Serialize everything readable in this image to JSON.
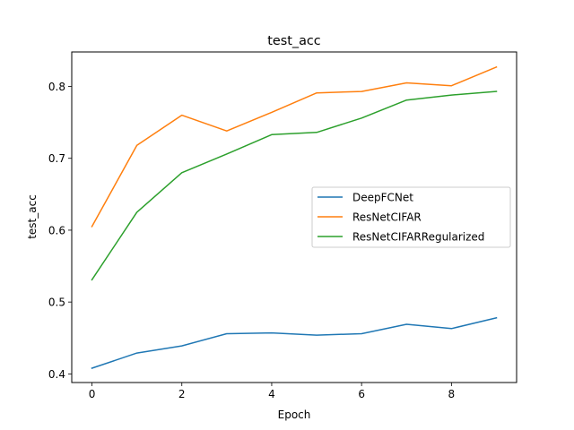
{
  "chart_data": {
    "type": "line",
    "title": "test_acc",
    "xlabel": "Epoch",
    "ylabel": "test_acc",
    "x": [
      0,
      1,
      2,
      3,
      4,
      5,
      6,
      7,
      8,
      9
    ],
    "xlim": [
      -0.45,
      9.45
    ],
    "ylim": [
      0.388,
      0.848
    ],
    "xticks": [
      0,
      2,
      4,
      6,
      8
    ],
    "yticks": [
      0.4,
      0.5,
      0.6,
      0.7,
      0.8
    ],
    "grid": false,
    "legend_position": "center-right",
    "series": [
      {
        "name": "DeepFCNet",
        "color": "#1f77b4",
        "values": [
          0.408,
          0.429,
          0.439,
          0.456,
          0.457,
          0.454,
          0.456,
          0.469,
          0.463,
          0.478
        ]
      },
      {
        "name": "ResNetCIFAR",
        "color": "#ff7f0e",
        "values": [
          0.605,
          0.718,
          0.76,
          0.738,
          0.764,
          0.791,
          0.793,
          0.805,
          0.801,
          0.827
        ]
      },
      {
        "name": "ResNetCIFARRegularized",
        "color": "#2ca02c",
        "values": [
          0.531,
          0.625,
          0.68,
          0.706,
          0.733,
          0.736,
          0.756,
          0.781,
          0.788,
          0.793
        ]
      }
    ]
  }
}
